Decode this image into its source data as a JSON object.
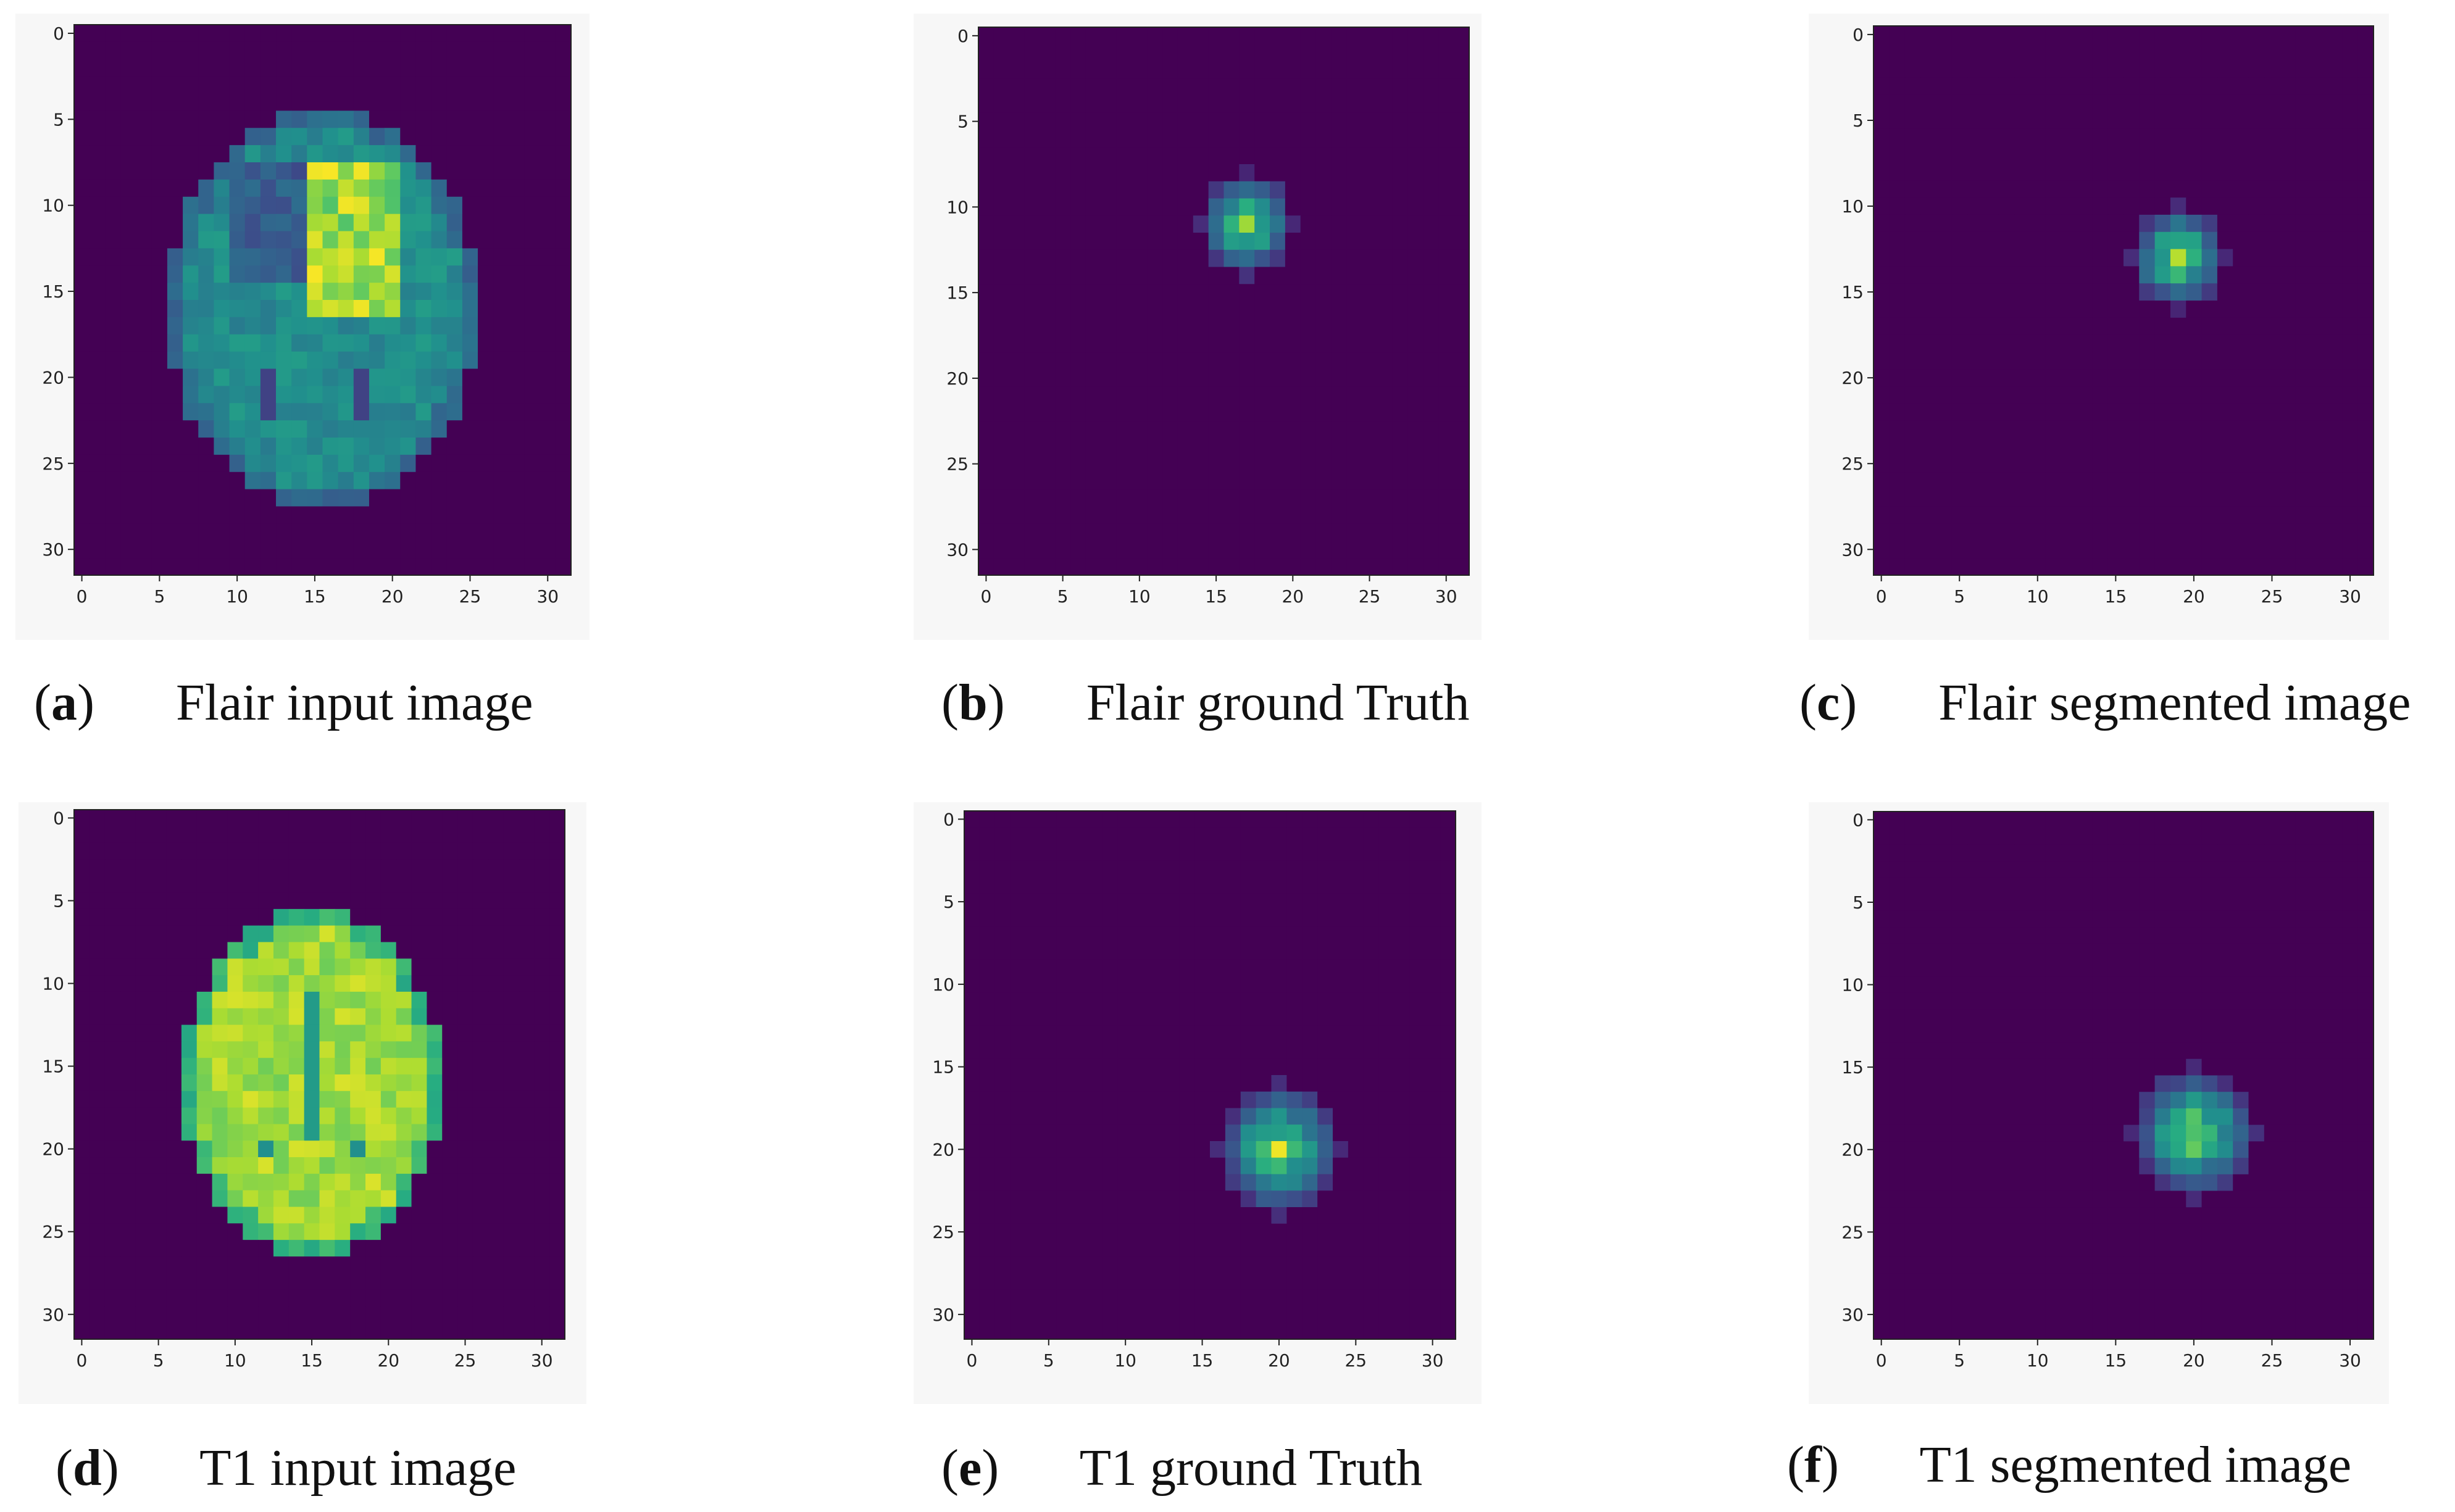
{
  "colormap": {
    "name": "viridis",
    "background": "#440154"
  },
  "axis": {
    "ticks": [
      "0",
      "5",
      "10",
      "15",
      "20",
      "25",
      "30"
    ]
  },
  "panels": [
    {
      "id": "a",
      "label": "a",
      "caption": "Flair input image",
      "image_type": "brain-flair",
      "region": {
        "x_range": [
          6,
          26
        ],
        "y_range": [
          5,
          28
        ]
      },
      "lesion": {
        "x": 17,
        "y": 11,
        "extent": 3
      }
    },
    {
      "id": "b",
      "label": "b",
      "caption": "Flair ground Truth",
      "image_type": "mask",
      "lesion": {
        "x": 17,
        "y": 11,
        "extent": 3
      }
    },
    {
      "id": "c",
      "label": "c",
      "caption": "Flair segmented image",
      "image_type": "mask",
      "lesion": {
        "x": 19,
        "y": 13,
        "extent": 3
      }
    },
    {
      "id": "d",
      "label": "d",
      "caption": "T1 input image",
      "image_type": "brain-t1",
      "region": {
        "x_range": [
          7,
          24
        ],
        "y_range": [
          6,
          27
        ]
      }
    },
    {
      "id": "e",
      "label": "e",
      "caption": "T1 ground Truth",
      "image_type": "mask",
      "lesion": {
        "x": 20,
        "y": 20,
        "extent": 4
      }
    },
    {
      "id": "f",
      "label": "f",
      "caption": "T1 segmented image",
      "image_type": "mask",
      "lesion": {
        "x": 20,
        "y": 19,
        "extent": 4
      }
    }
  ]
}
